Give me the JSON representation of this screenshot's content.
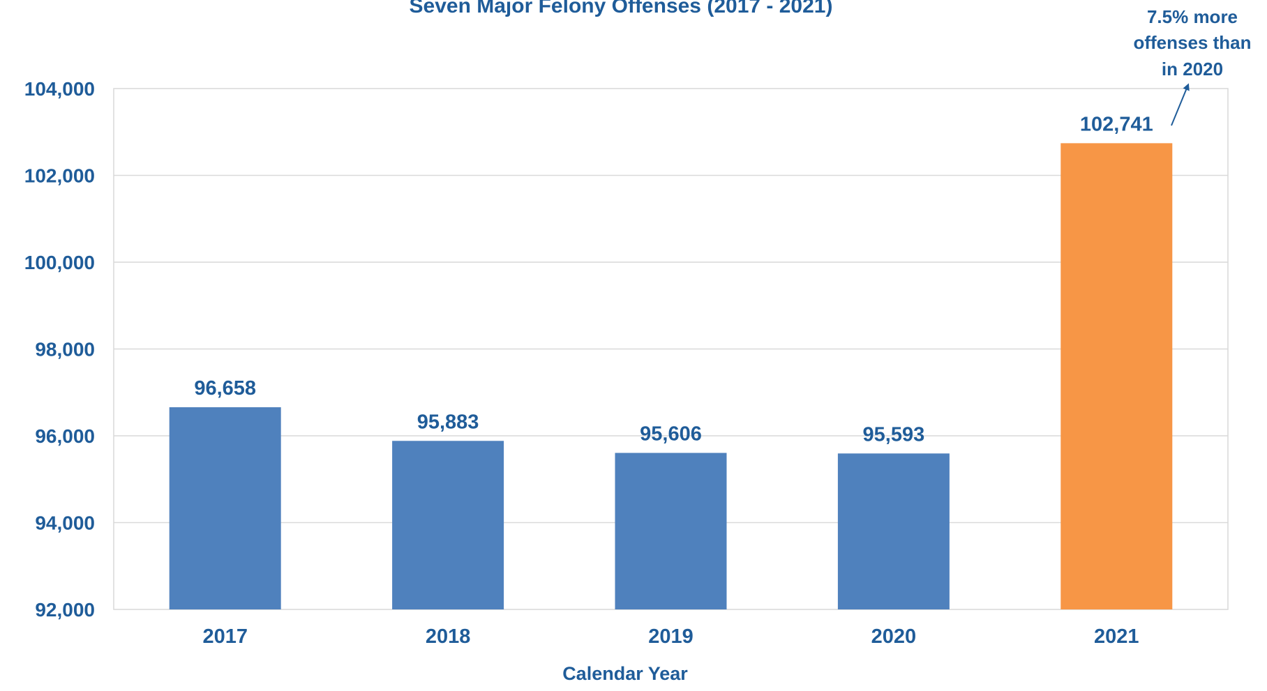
{
  "chart_data": {
    "type": "bar",
    "title": "Seven Major Felony Offenses (2017 - 2021)",
    "xlabel": "Calendar Year",
    "ylabel": "",
    "categories": [
      "2017",
      "2018",
      "2019",
      "2020",
      "2021"
    ],
    "values": [
      96658,
      95883,
      95606,
      95593,
      102741
    ],
    "value_labels": [
      "96,658",
      "95,883",
      "95,606",
      "95,593",
      "102,741"
    ],
    "ylim": [
      92000,
      104000
    ],
    "yticks": [
      92000,
      94000,
      96000,
      98000,
      100000,
      102000,
      104000
    ],
    "ytick_labels": [
      "92,000",
      "94,000",
      "96,000",
      "98,000",
      "100,000",
      "102,000",
      "104,000"
    ],
    "grid": true,
    "legend": "none",
    "annotation": {
      "lines": [
        "7.5% more",
        "offenses than",
        "in 2020"
      ],
      "target_category": "2021"
    },
    "colors": {
      "bar": "#4f81bd",
      "highlight_bar": "#f79646",
      "text": "#1f5c99",
      "grid": "#d9d9d9"
    }
  }
}
